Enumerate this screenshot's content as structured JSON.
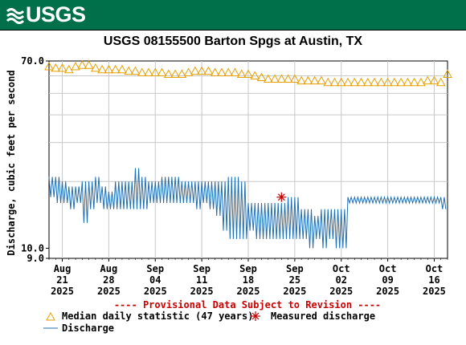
{
  "banner": {
    "logo_text": "USGS",
    "color": "#00704a"
  },
  "chart_data": {
    "type": "line",
    "title": "USGS 08155500 Barton Spgs at Austin, TX",
    "ylabel": "Discharge, cubic feet per second",
    "xlabel": "",
    "y_scale": "log",
    "ylim": [
      9.0,
      70.0
    ],
    "y_tick_labels": [
      "70.0",
      "10.0",
      "9.0"
    ],
    "x_ticks": [
      {
        "month": "Aug",
        "day": "21",
        "year": "2025",
        "date": "2025-08-21"
      },
      {
        "month": "Aug",
        "day": "28",
        "year": "2025",
        "date": "2025-08-28"
      },
      {
        "month": "Sep",
        "day": "04",
        "year": "2025",
        "date": "2025-09-04"
      },
      {
        "month": "Sep",
        "day": "11",
        "year": "2025",
        "date": "2025-09-11"
      },
      {
        "month": "Sep",
        "day": "18",
        "year": "2025",
        "date": "2025-09-18"
      },
      {
        "month": "Sep",
        "day": "25",
        "year": "2025",
        "date": "2025-09-25"
      },
      {
        "month": "Oct",
        "day": "02",
        "year": "2025",
        "date": "2025-10-02"
      },
      {
        "month": "Oct",
        "day": "09",
        "year": "2025",
        "date": "2025-10-09"
      },
      {
        "month": "Oct",
        "day": "16",
        "year": "2025",
        "date": "2025-10-16"
      }
    ],
    "xlim": [
      "2025-08-19",
      "2025-10-18"
    ],
    "grid": true,
    "provisional_note": "---- Provisional Data Subject to Revision ----",
    "legend": [
      {
        "label": "Median daily statistic (47 years)",
        "marker": "triangle",
        "color": "#e6a000"
      },
      {
        "label": "Measured discharge",
        "marker": "asterisk",
        "color": "#c00000"
      },
      {
        "label": "Discharge",
        "marker": "line",
        "color": "#1f6fb4"
      }
    ],
    "series": [
      {
        "name": "Median daily statistic (47 years)",
        "x": [
          "2025-08-19",
          "2025-08-20",
          "2025-08-21",
          "2025-08-22",
          "2025-08-23",
          "2025-08-24",
          "2025-08-25",
          "2025-08-26",
          "2025-08-27",
          "2025-08-28",
          "2025-08-29",
          "2025-08-30",
          "2025-08-31",
          "2025-09-01",
          "2025-09-02",
          "2025-09-03",
          "2025-09-04",
          "2025-09-05",
          "2025-09-06",
          "2025-09-07",
          "2025-09-08",
          "2025-09-09",
          "2025-09-10",
          "2025-09-11",
          "2025-09-12",
          "2025-09-13",
          "2025-09-14",
          "2025-09-15",
          "2025-09-16",
          "2025-09-17",
          "2025-09-18",
          "2025-09-19",
          "2025-09-20",
          "2025-09-21",
          "2025-09-22",
          "2025-09-23",
          "2025-09-24",
          "2025-09-25",
          "2025-09-26",
          "2025-09-27",
          "2025-09-28",
          "2025-09-29",
          "2025-09-30",
          "2025-10-01",
          "2025-10-02",
          "2025-10-03",
          "2025-10-04",
          "2025-10-05",
          "2025-10-06",
          "2025-10-07",
          "2025-10-08",
          "2025-10-09",
          "2025-10-10",
          "2025-10-11",
          "2025-10-12",
          "2025-10-13",
          "2025-10-14",
          "2025-10-15",
          "2025-10-16",
          "2025-10-17",
          "2025-10-18"
        ],
        "values": [
          66,
          65,
          65,
          64,
          66,
          67,
          67,
          65,
          64,
          64,
          64,
          64,
          63,
          63,
          62,
          62,
          62,
          62,
          61,
          61,
          61,
          62,
          63,
          63,
          63,
          62,
          62,
          62,
          62,
          61,
          61,
          60,
          59,
          58,
          58,
          58,
          58,
          58,
          57,
          57,
          57,
          57,
          56,
          56,
          56,
          56,
          56,
          56,
          56,
          56,
          56,
          56,
          56,
          56,
          56,
          56,
          56,
          57,
          57,
          56,
          61
        ]
      },
      {
        "name": "Discharge",
        "x": [
          "2025-08-19",
          "2025-08-20",
          "2025-08-21",
          "2025-08-22",
          "2025-08-23",
          "2025-08-24",
          "2025-08-25",
          "2025-08-26",
          "2025-08-27",
          "2025-08-28",
          "2025-08-29",
          "2025-08-30",
          "2025-08-31",
          "2025-09-01",
          "2025-09-02",
          "2025-09-03",
          "2025-09-04",
          "2025-09-05",
          "2025-09-06",
          "2025-09-07",
          "2025-09-08",
          "2025-09-09",
          "2025-09-10",
          "2025-09-11",
          "2025-09-12",
          "2025-09-13",
          "2025-09-14",
          "2025-09-15",
          "2025-09-16",
          "2025-09-17",
          "2025-09-18",
          "2025-09-19",
          "2025-09-20",
          "2025-09-21",
          "2025-09-22",
          "2025-09-23",
          "2025-09-24",
          "2025-09-25",
          "2025-09-26",
          "2025-09-27",
          "2025-09-28",
          "2025-09-29",
          "2025-09-30",
          "2025-10-01",
          "2025-10-02",
          "2025-10-03",
          "2025-10-04",
          "2025-10-05",
          "2025-10-06",
          "2025-10-07",
          "2025-10-08",
          "2025-10-09",
          "2025-10-10",
          "2025-10-11",
          "2025-10-12",
          "2025-10-13",
          "2025-10-14",
          "2025-10-15",
          "2025-10-16",
          "2025-10-17"
        ],
        "low": [
          17,
          16,
          16,
          15,
          16,
          13,
          15,
          16,
          15,
          15,
          15,
          15,
          15,
          15,
          15,
          16,
          16,
          16,
          16,
          16,
          16,
          16,
          15,
          16,
          15,
          14,
          12,
          11,
          11,
          11,
          12,
          11,
          11,
          11,
          11,
          11,
          11,
          11,
          11,
          10,
          11,
          10,
          11,
          10,
          10,
          16,
          16,
          16,
          16,
          16,
          16,
          16,
          16,
          16,
          16,
          16,
          16,
          16,
          16,
          15
        ],
        "high": [
          21,
          21,
          20,
          19,
          19,
          20,
          20,
          21,
          19,
          18,
          20,
          20,
          20,
          23,
          21,
          20,
          20,
          21,
          21,
          21,
          20,
          20,
          20,
          20,
          20,
          20,
          20,
          21,
          21,
          20,
          16,
          16,
          16,
          16,
          16,
          16,
          17,
          17,
          15,
          15,
          14,
          15,
          15,
          15,
          15,
          17,
          17,
          17,
          17,
          17,
          17,
          17,
          17,
          17,
          17,
          17,
          17,
          17,
          17,
          17
        ]
      }
    ],
    "measured_points": [
      {
        "x": "2025-09-23",
        "y": 17
      }
    ]
  }
}
